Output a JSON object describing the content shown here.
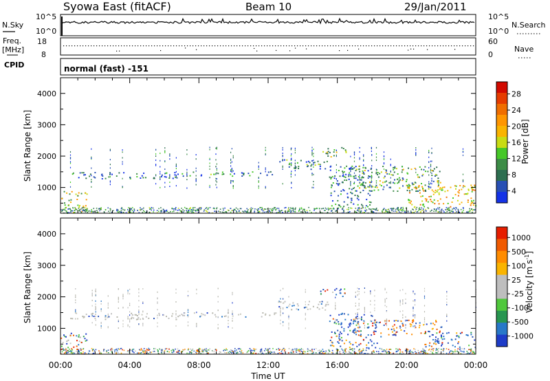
{
  "header": {
    "station": "Syowa East (fitACF)",
    "beam": "Beam 10",
    "date": "29/Jan/2011"
  },
  "top_panels": {
    "nsky_label": "N.Sky",
    "nsky_ticks": [
      "10^5",
      "10^0"
    ],
    "nsearch_label": "N.Search",
    "nsearch_ticks": [
      "10^5",
      "10^0"
    ],
    "freq_label": "Freq.",
    "freq_unit": "[MHz]",
    "freq_ticks": [
      "18",
      "8"
    ],
    "nave_label": "Nave",
    "nave_ticks": [
      "60",
      "0"
    ],
    "cpid_label": "CPID",
    "cpid_text": "normal (fast) -151"
  },
  "chart_data": [
    {
      "type": "heatmap",
      "panel": "power",
      "ylabel": "Slant Range [km]",
      "xlabel": "",
      "yticks": [
        "4000",
        "3000",
        "2000",
        "1000"
      ],
      "ylim": [
        180,
        4500
      ],
      "xlim_hours": [
        0,
        24
      ],
      "colorbar_label": "Power [dB]",
      "colorbar_ticks": [
        "28",
        "24",
        "20",
        "16",
        "12",
        "8",
        "4"
      ],
      "colorbar_colors": [
        "#1432e6",
        "#2850b4",
        "#2d6e50",
        "#3c8c46",
        "#46c828",
        "#c8dc14",
        "#fab400",
        "#ff9600",
        "#f06e00",
        "#e63c00",
        "#d20a00"
      ],
      "echo_regions": [
        {
          "t": [
            0.0,
            1.5
          ],
          "r": [
            200,
            900
          ],
          "level": 0.55
        },
        {
          "t": [
            0.5,
            7.0
          ],
          "r": [
            1300,
            1500
          ],
          "level": 0.2
        },
        {
          "t": [
            7.0,
            12.5
          ],
          "r": [
            1380,
            1520
          ],
          "level": 0.28
        },
        {
          "t": [
            12.5,
            15.5
          ],
          "r": [
            1600,
            1900
          ],
          "level": 0.3
        },
        {
          "t": [
            15.0,
            16.5
          ],
          "r": [
            2000,
            2300
          ],
          "level": 0.45
        },
        {
          "t": [
            15.5,
            18.0
          ],
          "r": [
            400,
            1700
          ],
          "level": 0.25
        },
        {
          "t": [
            17.0,
            22.0
          ],
          "r": [
            900,
            1700
          ],
          "level": 0.4
        },
        {
          "t": [
            20.0,
            24.0
          ],
          "r": [
            400,
            1100
          ],
          "level": 0.65
        }
      ]
    },
    {
      "type": "heatmap",
      "panel": "velocity",
      "ylabel": "Slant Range [km]",
      "xlabel": "Time UT",
      "yticks": [
        "4000",
        "3000",
        "2000",
        "1000"
      ],
      "ylim": [
        180,
        4500
      ],
      "xlim_hours": [
        0,
        24
      ],
      "xticks": [
        "00:00",
        "04:00",
        "08:00",
        "12:00",
        "16:00",
        "20:00",
        "00:00"
      ],
      "colorbar_label": "Velocity [m s-1]",
      "colorbar_ticks": [
        "1000",
        "500",
        "100",
        "25",
        "-25",
        "-100",
        "-500",
        "-1000"
      ],
      "colorbar_colors": [
        "#1e3cc8",
        "#2878c8",
        "#289650",
        "#50c83c",
        "#bebebe",
        "#bebebe",
        "#fab400",
        "#ff8c00",
        "#f05a00",
        "#e61e00"
      ],
      "echo_regions": [
        {
          "t": [
            0.0,
            1.5
          ],
          "r": [
            200,
            900
          ],
          "kind": "mixed"
        },
        {
          "t": [
            0.5,
            7.0
          ],
          "r": [
            1300,
            1500
          ],
          "kind": "gray"
        },
        {
          "t": [
            7.0,
            12.5
          ],
          "r": [
            1380,
            1520
          ],
          "kind": "gray"
        },
        {
          "t": [
            12.5,
            15.5
          ],
          "r": [
            1600,
            1900
          ],
          "kind": "gray"
        },
        {
          "t": [
            15.0,
            16.5
          ],
          "r": [
            2000,
            2300
          ],
          "kind": "mixed"
        },
        {
          "t": [
            15.5,
            18.5
          ],
          "r": [
            400,
            1500
          ],
          "kind": "blue"
        },
        {
          "t": [
            18.0,
            22.0
          ],
          "r": [
            800,
            1300
          ],
          "kind": "orange"
        },
        {
          "t": [
            21.0,
            24.0
          ],
          "r": [
            400,
            900
          ],
          "kind": "blue"
        }
      ]
    }
  ]
}
